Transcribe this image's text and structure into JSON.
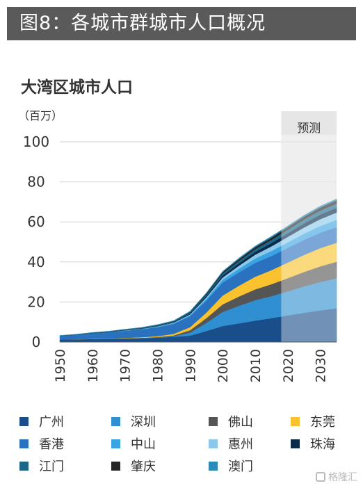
{
  "header": {
    "title": "图8：各城市群城市人口概况"
  },
  "chart_data": {
    "type": "area",
    "title": "大湾区城市人口",
    "unit_label": "（百万）",
    "forecast_label": "预测",
    "forecast_range": [
      2018,
      2035
    ],
    "x": [
      1950,
      1955,
      1960,
      1965,
      1970,
      1975,
      1980,
      1985,
      1990,
      1995,
      2000,
      2005,
      2010,
      2015,
      2020,
      2025,
      2030,
      2035
    ],
    "x_ticks": [
      1950,
      1960,
      1970,
      1980,
      1990,
      2000,
      2010,
      2020,
      2030
    ],
    "y_ticks": [
      0,
      20,
      40,
      60,
      80,
      100
    ],
    "ylim": [
      0,
      100
    ],
    "xlim": [
      1950,
      2035
    ],
    "grid": true,
    "legend_position": "bottom",
    "series": [
      {
        "name": "广州",
        "color": "#1a4e8a",
        "values": [
          1.3,
          1.4,
          1.5,
          1.6,
          1.7,
          1.9,
          2.2,
          2.6,
          3.2,
          5.5,
          8.0,
          9.3,
          10.7,
          11.9,
          13.3,
          14.6,
          15.8,
          16.8
        ]
      },
      {
        "name": "深圳",
        "color": "#2f8fd0",
        "values": [
          0.0,
          0.0,
          0.0,
          0.0,
          0.1,
          0.1,
          0.1,
          0.3,
          1.5,
          4.0,
          7.0,
          8.8,
          10.2,
          11.0,
          12.0,
          13.2,
          14.2,
          15.0
        ]
      },
      {
        "name": "佛山",
        "color": "#555555",
        "values": [
          0.0,
          0.0,
          0.0,
          0.0,
          0.1,
          0.1,
          0.2,
          0.4,
          1.2,
          2.4,
          3.8,
          4.6,
          5.4,
          6.0,
          6.6,
          7.2,
          7.8,
          8.3
        ]
      },
      {
        "name": "东莞",
        "color": "#f9c22e",
        "values": [
          0.0,
          0.0,
          0.1,
          0.1,
          0.2,
          0.3,
          0.4,
          0.8,
          1.5,
          2.8,
          4.4,
          5.4,
          6.3,
          7.0,
          7.8,
          8.5,
          9.1,
          9.5
        ]
      },
      {
        "name": "香港",
        "color": "#2a72c0",
        "values": [
          1.7,
          2.2,
          2.8,
          3.2,
          3.5,
          4.0,
          4.5,
          5.0,
          5.5,
          6.0,
          6.5,
          6.7,
          6.9,
          7.1,
          7.3,
          7.5,
          7.7,
          7.8
        ]
      },
      {
        "name": "中山",
        "color": "#3aa3e2",
        "values": [
          0.0,
          0.0,
          0.0,
          0.0,
          0.1,
          0.1,
          0.2,
          0.3,
          0.5,
          0.9,
          1.4,
          1.8,
          2.2,
          2.5,
          2.8,
          3.1,
          3.4,
          3.6
        ]
      },
      {
        "name": "惠州",
        "color": "#8cc8ea",
        "values": [
          0.0,
          0.0,
          0.0,
          0.0,
          0.1,
          0.1,
          0.2,
          0.3,
          0.4,
          0.7,
          1.1,
          1.5,
          1.9,
          2.3,
          2.7,
          3.1,
          3.4,
          3.7
        ]
      },
      {
        "name": "珠海",
        "color": "#0b2a4a",
        "values": [
          0.0,
          0.0,
          0.0,
          0.0,
          0.1,
          0.1,
          0.1,
          0.2,
          0.4,
          0.7,
          1.0,
          1.2,
          1.4,
          1.6,
          1.8,
          2.0,
          2.2,
          2.3
        ]
      },
      {
        "name": "江门",
        "color": "#1c6688",
        "values": [
          0.1,
          0.1,
          0.1,
          0.2,
          0.2,
          0.2,
          0.3,
          0.3,
          0.5,
          0.7,
          1.0,
          1.2,
          1.4,
          1.6,
          1.8,
          2.0,
          2.1,
          2.2
        ]
      },
      {
        "name": "肇庆",
        "color": "#262626",
        "values": [
          0.0,
          0.0,
          0.1,
          0.1,
          0.1,
          0.1,
          0.2,
          0.2,
          0.3,
          0.5,
          0.7,
          0.9,
          1.0,
          1.2,
          1.3,
          1.4,
          1.5,
          1.6
        ]
      },
      {
        "name": "澳门",
        "color": "#2b8ab8",
        "values": [
          0.2,
          0.2,
          0.2,
          0.2,
          0.2,
          0.3,
          0.3,
          0.3,
          0.4,
          0.4,
          0.4,
          0.5,
          0.5,
          0.6,
          0.6,
          0.7,
          0.7,
          0.7
        ]
      }
    ]
  },
  "watermark": {
    "text": "格隆汇"
  }
}
